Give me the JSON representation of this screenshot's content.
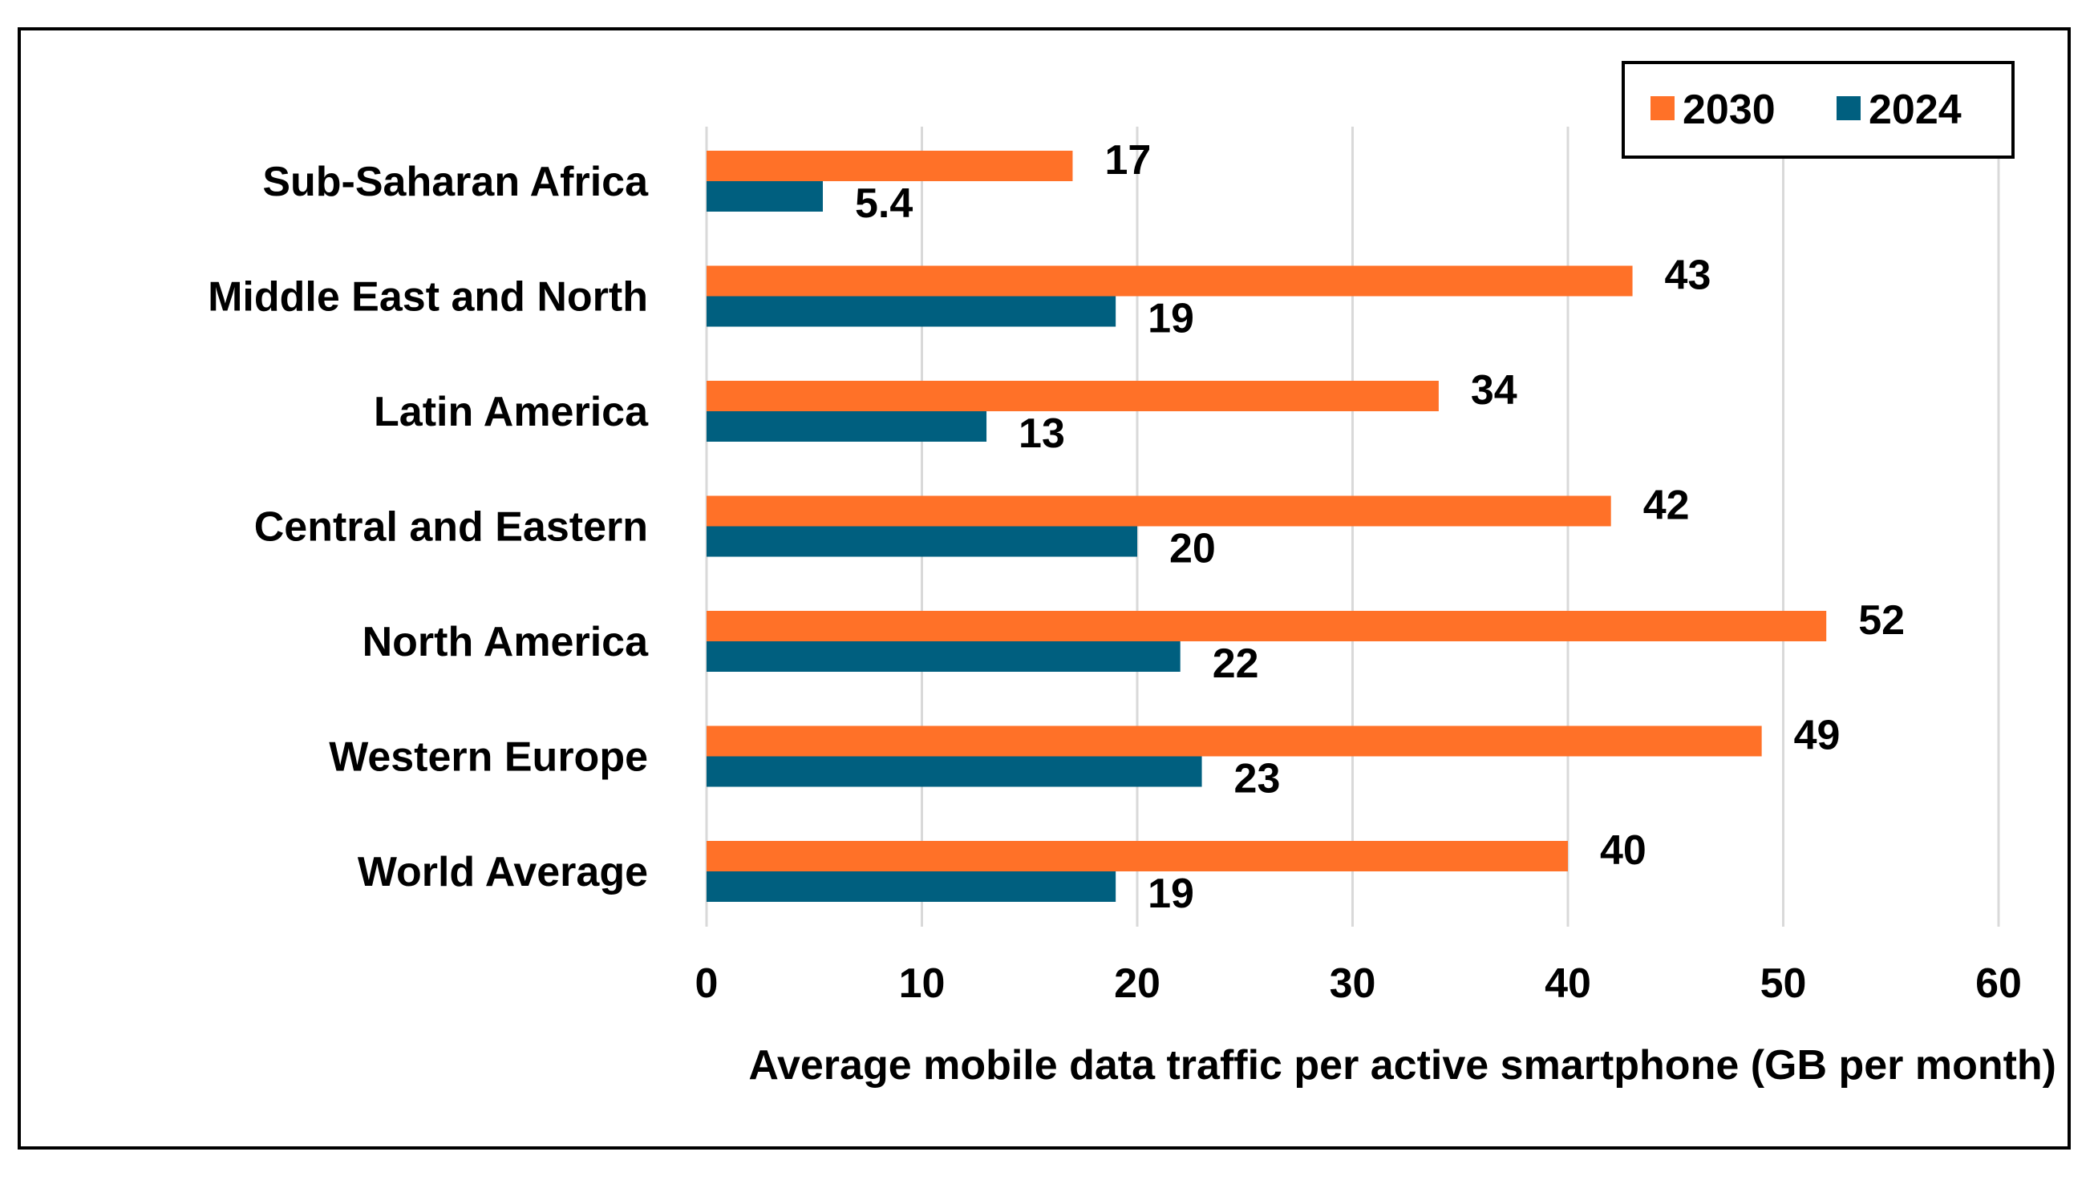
{
  "chart_data": {
    "type": "bar",
    "orientation": "horizontal",
    "title": "",
    "categories": [
      "Sub-Saharan Africa",
      "Middle East and North",
      "Latin America",
      "Central and Eastern",
      "North America",
      "Western Europe",
      "World Average"
    ],
    "series": [
      {
        "name": "2030",
        "color": "#ff7128",
        "values": [
          17,
          43,
          34,
          42,
          52,
          49,
          40
        ],
        "labels": [
          "17",
          "43",
          "34",
          "42",
          "52",
          "49",
          "40"
        ]
      },
      {
        "name": "2024",
        "color": "#005f7f",
        "values": [
          5.4,
          19,
          13,
          20,
          22,
          23,
          19
        ],
        "labels": [
          "5.4",
          "19",
          "13",
          "20",
          "22",
          "23",
          "19"
        ]
      }
    ],
    "xlabel": "Average mobile data traffic per active smartphone (GB per month)",
    "ylabel": "",
    "xlim": [
      0,
      60
    ],
    "xticks": [
      0,
      10,
      20,
      30,
      40,
      50,
      60
    ],
    "grid": true,
    "legend": "top-right"
  }
}
